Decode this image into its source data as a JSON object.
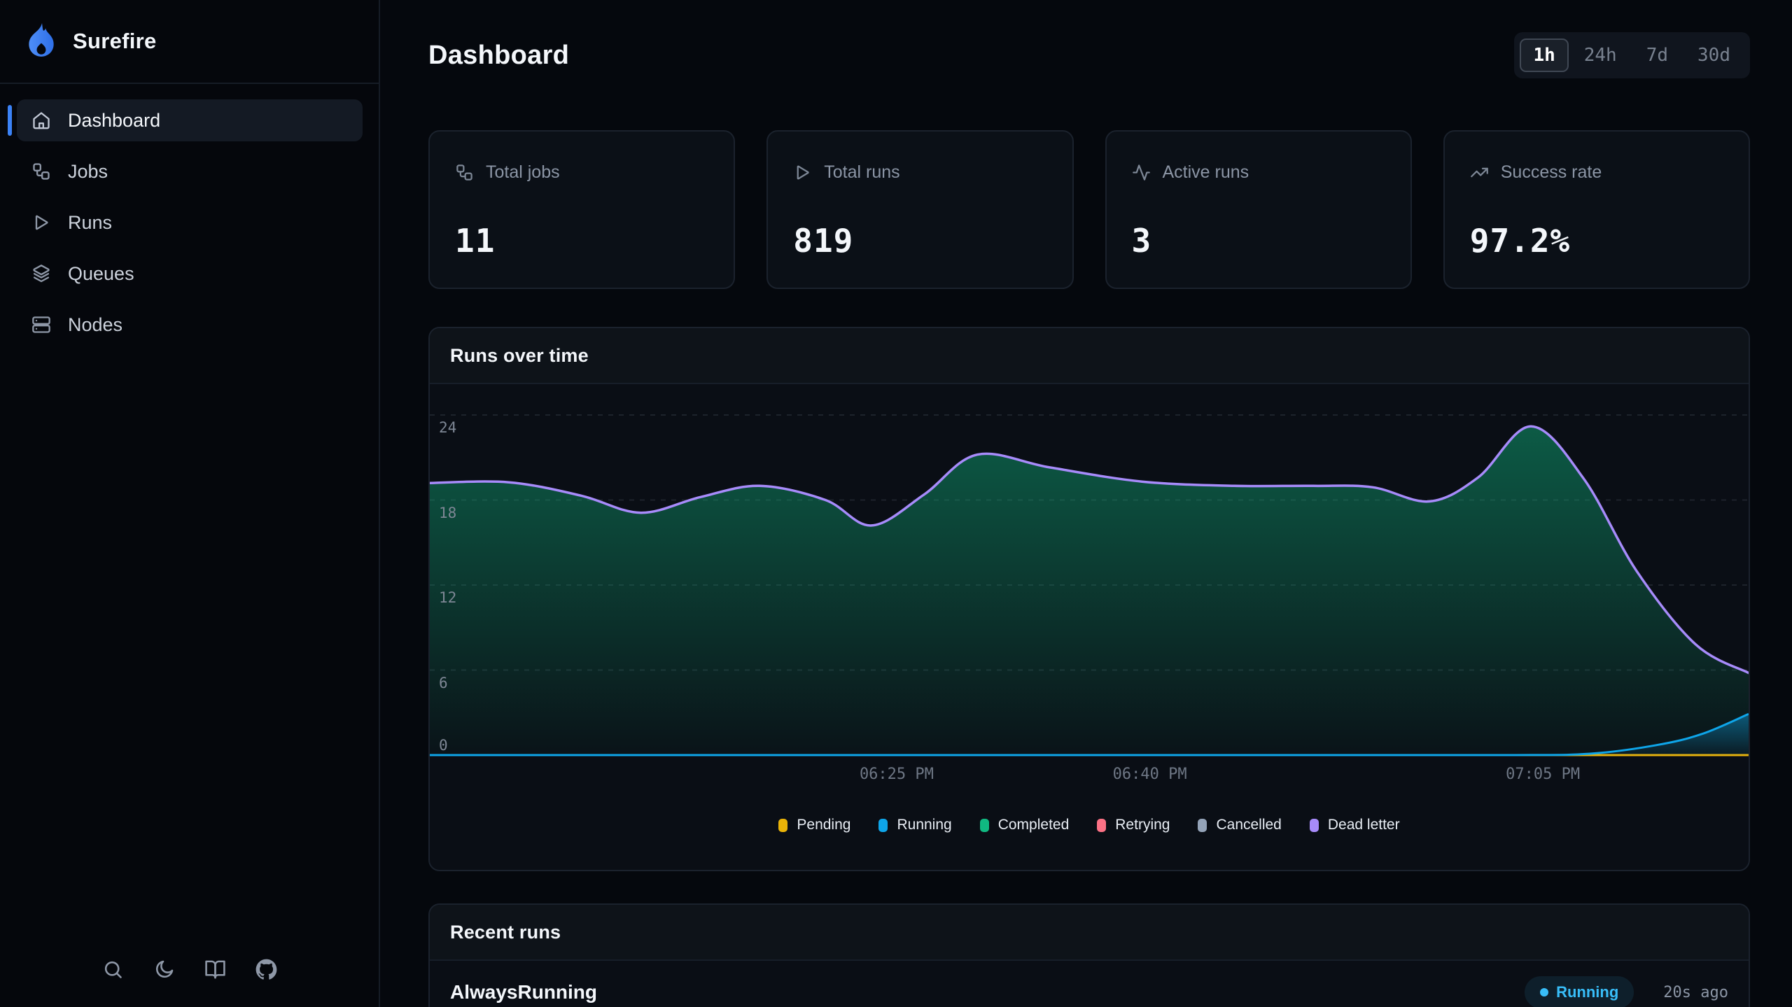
{
  "brand": {
    "name": "Surefire",
    "logo_icon": "flame-icon",
    "logo_color": "#3b82f6"
  },
  "sidebar": {
    "items": [
      {
        "label": "Dashboard",
        "icon": "home",
        "active": true
      },
      {
        "label": "Jobs",
        "icon": "workflow",
        "active": false
      },
      {
        "label": "Runs",
        "icon": "play",
        "active": false
      },
      {
        "label": "Queues",
        "icon": "layers",
        "active": false
      },
      {
        "label": "Nodes",
        "icon": "server",
        "active": false
      }
    ],
    "footer_icons": [
      "search",
      "moon",
      "book-open",
      "github"
    ]
  },
  "header": {
    "title": "Dashboard",
    "time_ranges": [
      {
        "label": "1h",
        "active": true
      },
      {
        "label": "24h",
        "active": false
      },
      {
        "label": "7d",
        "active": false
      },
      {
        "label": "30d",
        "active": false
      }
    ]
  },
  "stats": [
    {
      "label": "Total jobs",
      "value": "11",
      "icon": "workflow"
    },
    {
      "label": "Total runs",
      "value": "819",
      "icon": "play"
    },
    {
      "label": "Active runs",
      "value": "3",
      "icon": "activity"
    },
    {
      "label": "Success rate",
      "value": "97.2%",
      "icon": "trending-up"
    }
  ],
  "chart_data": {
    "type": "area",
    "title": "Runs over time",
    "stacked": true,
    "grid": true,
    "legend_position": "bottom",
    "ylim": [
      0,
      24
    ],
    "y_ticks": [
      0,
      6,
      12,
      18,
      24
    ],
    "x_ticks": [
      {
        "label": "06:25 PM",
        "pos": 0.354
      },
      {
        "label": "06:40 PM",
        "pos": 0.546
      },
      {
        "label": "07:05 PM",
        "pos": 0.844
      }
    ],
    "series": [
      {
        "name": "Pending",
        "color": "#eab308",
        "points": [
          [
            0,
            0
          ],
          [
            0.25,
            0
          ],
          [
            0.5,
            0
          ],
          [
            0.75,
            0
          ],
          [
            1,
            0
          ]
        ]
      },
      {
        "name": "Running",
        "color": "#0ea5e9",
        "points": [
          [
            0,
            0
          ],
          [
            0.3,
            0
          ],
          [
            0.6,
            0
          ],
          [
            0.82,
            0
          ],
          [
            0.88,
            0.1
          ],
          [
            0.93,
            0.7
          ],
          [
            0.965,
            1.5
          ],
          [
            1,
            2.9
          ]
        ]
      },
      {
        "name": "Completed",
        "color": "#10b981",
        "points": [
          [
            0,
            19.2
          ],
          [
            0.06,
            19.25
          ],
          [
            0.115,
            18.3
          ],
          [
            0.16,
            17.1
          ],
          [
            0.205,
            18.2
          ],
          [
            0.25,
            19.0
          ],
          [
            0.3,
            18.0
          ],
          [
            0.335,
            16.2
          ],
          [
            0.375,
            18.4
          ],
          [
            0.415,
            21.2
          ],
          [
            0.47,
            20.3
          ],
          [
            0.54,
            19.3
          ],
          [
            0.61,
            19.0
          ],
          [
            0.67,
            19.0
          ],
          [
            0.715,
            18.9
          ],
          [
            0.758,
            17.9
          ],
          [
            0.795,
            19.6
          ],
          [
            0.835,
            23.2
          ],
          [
            0.875,
            19.5
          ],
          [
            0.915,
            13.0
          ],
          [
            0.96,
            7.8
          ],
          [
            1,
            5.8
          ]
        ]
      },
      {
        "name": "Retrying",
        "color": "#fb7185",
        "points": [
          [
            0,
            0
          ],
          [
            0.5,
            0
          ],
          [
            1,
            0
          ]
        ]
      },
      {
        "name": "Cancelled",
        "color": "#94a3b8",
        "points": [
          [
            0,
            0
          ],
          [
            0.5,
            0
          ],
          [
            1,
            0
          ]
        ]
      },
      {
        "name": "Dead letter",
        "color": "#a78bfa",
        "points": [
          [
            0,
            0
          ],
          [
            0.5,
            0
          ],
          [
            1,
            0
          ]
        ]
      }
    ]
  },
  "recent": {
    "title": "Recent runs",
    "rows": [
      {
        "name": "AlwaysRunning",
        "status": "Running",
        "status_color": "#38bdf8",
        "time": "20s ago"
      }
    ]
  }
}
